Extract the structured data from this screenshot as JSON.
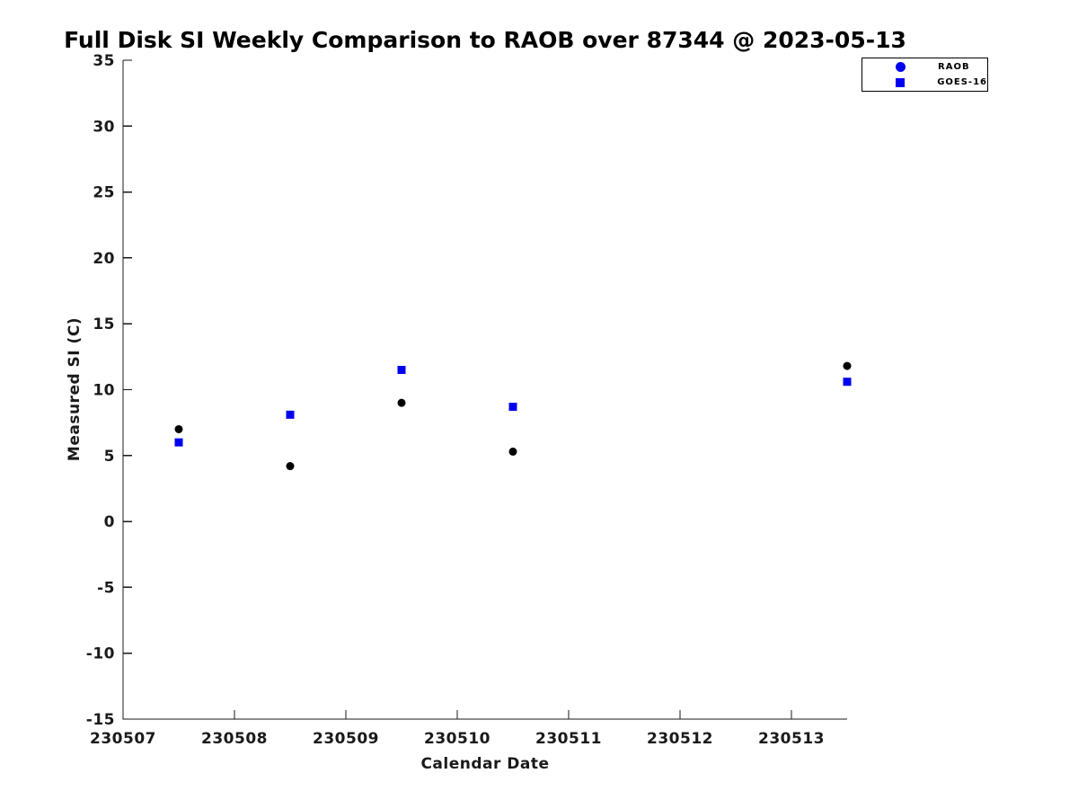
{
  "chart_data": {
    "type": "scatter",
    "title": "Full Disk SI Weekly Comparison to RAOB over 87344 @ 2023-05-13",
    "xlabel": "Calendar Date",
    "ylabel": "Measured SI (C)",
    "xlim": [
      230507,
      230513.5
    ],
    "ylim": [
      -15,
      35
    ],
    "xticks": [
      230507,
      230508,
      230509,
      230510,
      230511,
      230512,
      230513
    ],
    "yticks": [
      -15,
      -10,
      -5,
      0,
      5,
      10,
      15,
      20,
      25,
      30,
      35
    ],
    "grid": false,
    "legend_position": "top-right",
    "series": [
      {
        "name": "RAOB",
        "marker": "circle",
        "color": "#000000",
        "legend_marker_color": "#0000f0",
        "x": [
          230507.5,
          230508.5,
          230509.5,
          230510.5,
          230513.5
        ],
        "y": [
          7.0,
          4.2,
          9.0,
          5.3,
          11.8
        ]
      },
      {
        "name": "GOES-16",
        "marker": "square",
        "color": "#0000f0",
        "legend_marker_color": "#0000f0",
        "x": [
          230507.5,
          230508.5,
          230509.5,
          230510.5,
          230513.5
        ],
        "y": [
          6.0,
          8.1,
          11.5,
          8.7,
          10.6
        ]
      }
    ]
  }
}
